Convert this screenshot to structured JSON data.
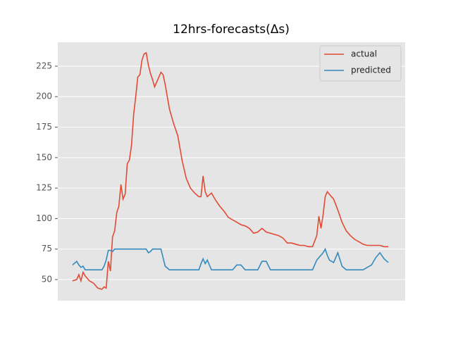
{
  "chart_data": {
    "type": "line",
    "title": "12hrs-forecasts(Δs)",
    "x": [
      0,
      2,
      3,
      4,
      5,
      6,
      8,
      10,
      12,
      14,
      15,
      16,
      17,
      18,
      19,
      20,
      21,
      22,
      23,
      24,
      25,
      26,
      27,
      28,
      29,
      30,
      31,
      32,
      33,
      34,
      35,
      36,
      37,
      38,
      39,
      40,
      42,
      43,
      44,
      46,
      48,
      50,
      52,
      54,
      56,
      58,
      60,
      61,
      62,
      63,
      64,
      66,
      68,
      70,
      72,
      74,
      76,
      78,
      80,
      82,
      84,
      86,
      88,
      90,
      92,
      94,
      96,
      98,
      100,
      102,
      104,
      106,
      108,
      110,
      112,
      114,
      116,
      117,
      118,
      119,
      120,
      121,
      122,
      124,
      126,
      128,
      130,
      132,
      134,
      136,
      138,
      140,
      142,
      144,
      146,
      148,
      150
    ],
    "series": [
      {
        "name": "actual",
        "color": "#e24a33",
        "values": [
          49,
          50,
          54,
          49,
          56,
          53,
          49,
          47,
          43,
          42,
          44,
          43,
          65,
          57,
          85,
          90,
          105,
          110,
          128,
          116,
          120,
          145,
          148,
          160,
          185,
          200,
          216,
          218,
          230,
          235,
          236,
          226,
          219,
          214,
          208,
          212,
          220,
          218,
          210,
          190,
          178,
          168,
          148,
          133,
          125,
          121,
          118,
          118,
          135,
          122,
          118,
          121,
          115,
          110,
          106,
          101,
          99,
          97,
          95,
          94,
          92,
          88,
          89,
          92,
          89,
          88,
          87,
          86,
          84,
          80,
          80,
          79,
          78,
          78,
          77,
          77,
          86,
          102,
          92,
          103,
          118,
          122,
          120,
          116,
          107,
          97,
          90,
          86,
          83,
          81,
          79,
          78,
          78,
          78,
          78,
          77,
          77
        ]
      },
      {
        "name": "predicted",
        "color": "#348abd",
        "values": [
          62,
          65,
          62,
          60,
          61,
          58,
          58,
          58,
          58,
          58,
          61,
          66,
          74,
          74,
          73,
          75,
          75,
          75,
          75,
          75,
          75,
          75,
          75,
          75,
          75,
          75,
          75,
          75,
          75,
          75,
          75,
          72,
          73,
          75,
          75,
          75,
          75,
          68,
          61,
          58,
          58,
          58,
          58,
          58,
          58,
          58,
          58,
          63,
          67,
          63,
          66,
          58,
          58,
          58,
          58,
          58,
          58,
          62,
          62,
          58,
          58,
          58,
          58,
          65,
          65,
          58,
          58,
          58,
          58,
          58,
          58,
          58,
          58,
          58,
          58,
          58,
          66,
          68,
          70,
          72,
          75,
          70,
          66,
          64,
          72,
          61,
          58,
          58,
          58,
          58,
          58,
          60,
          62,
          68,
          72,
          67,
          64
        ]
      }
    ],
    "xlim": [
      -7,
      158
    ],
    "ylim": [
      32.7,
      244.6
    ],
    "yticks": [
      50,
      75,
      100,
      125,
      150,
      175,
      200,
      225
    ],
    "grid": true,
    "legend": "upper right"
  }
}
